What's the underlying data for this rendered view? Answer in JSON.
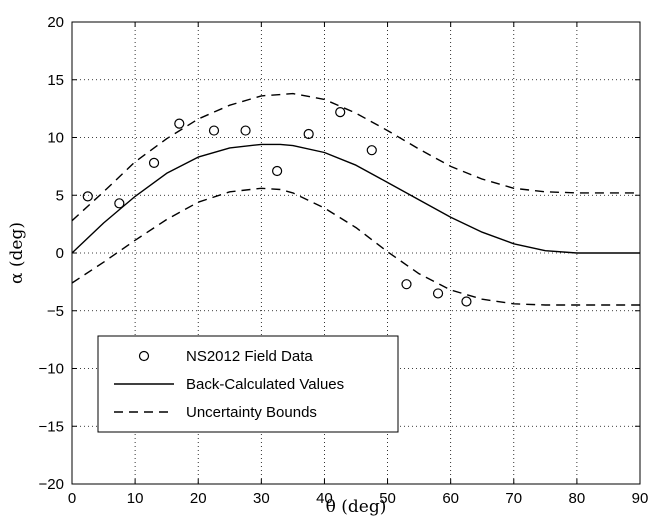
{
  "chart_data": {
    "type": "line",
    "title": "",
    "xlabel": "θ (deg)",
    "ylabel": "α (deg)",
    "xlim": [
      0,
      90
    ],
    "ylim": [
      -20,
      20
    ],
    "xticks": [
      "0",
      "10",
      "20",
      "30",
      "40",
      "50",
      "60",
      "70",
      "80",
      "90"
    ],
    "yticks": [
      "20",
      "15",
      "10",
      "5",
      "0",
      "−5",
      "−10",
      "−15",
      "−20"
    ],
    "grid": true,
    "legend_position": "bottom-left",
    "series": [
      {
        "name": "NS2012 Field Data",
        "kind": "scatter",
        "marker": "open-circle",
        "x": [
          2.5,
          7.5,
          13,
          17,
          22.5,
          27.5,
          32.5,
          37.5,
          42.5,
          47.5,
          53,
          58,
          62.5
        ],
        "y": [
          4.9,
          4.3,
          7.8,
          11.2,
          10.6,
          10.6,
          7.1,
          10.3,
          12.2,
          8.9,
          -2.7,
          -3.5,
          -4.2
        ]
      },
      {
        "name": "Back-Calculated Values",
        "kind": "line",
        "style": "solid",
        "x": [
          0,
          5,
          10,
          15,
          20,
          25,
          30,
          33,
          35,
          40,
          45,
          50,
          55,
          60,
          65,
          70,
          75,
          80,
          85,
          90
        ],
        "y": [
          0,
          2.6,
          4.9,
          6.9,
          8.3,
          9.1,
          9.4,
          9.4,
          9.3,
          8.7,
          7.6,
          6.1,
          4.6,
          3.1,
          1.8,
          0.8,
          0.2,
          0,
          0,
          0
        ]
      },
      {
        "name": "Uncertainty Bounds",
        "kind": "line",
        "style": "dashed",
        "x": [
          0,
          5,
          10,
          15,
          20,
          25,
          30,
          35,
          40,
          45,
          50,
          55,
          60,
          65,
          70,
          75,
          80,
          85,
          90
        ],
        "y": [
          2.8,
          5.3,
          7.9,
          9.9,
          11.6,
          12.8,
          13.6,
          13.8,
          13.3,
          12.1,
          10.6,
          9.0,
          7.5,
          6.4,
          5.6,
          5.3,
          5.2,
          5.2,
          5.2
        ]
      },
      {
        "name": "",
        "kind": "line",
        "style": "dashed",
        "x": [
          0,
          5,
          10,
          15,
          20,
          25,
          30,
          33,
          35,
          40,
          45,
          50,
          55,
          60,
          65,
          70,
          75,
          80,
          85,
          90
        ],
        "y": [
          -2.6,
          -0.8,
          1.1,
          2.9,
          4.4,
          5.3,
          5.6,
          5.5,
          5.2,
          3.9,
          2.2,
          0.1,
          -1.8,
          -3.2,
          -4.0,
          -4.4,
          -4.5,
          -4.5,
          -4.5,
          -4.5
        ]
      }
    ]
  }
}
